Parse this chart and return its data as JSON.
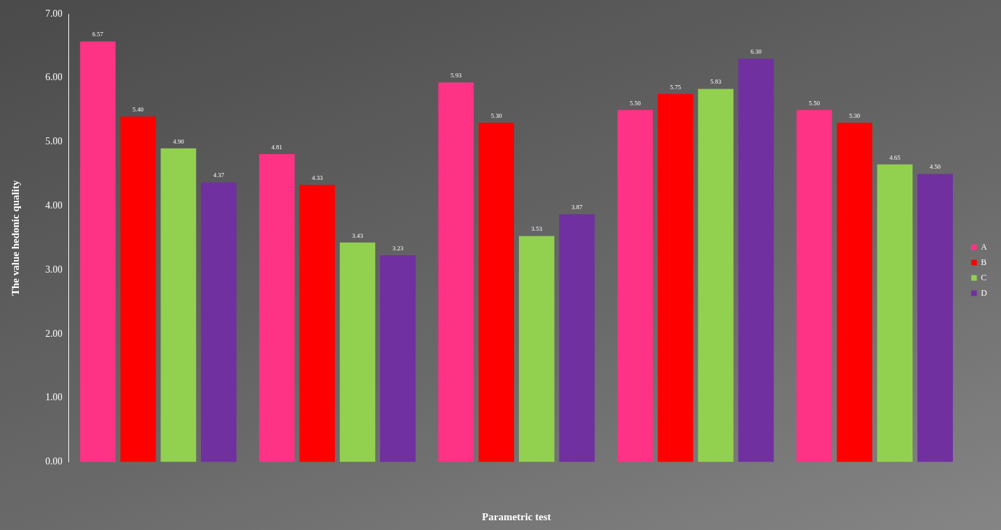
{
  "chart_data": {
    "type": "bar",
    "xlabel": "Parametric test",
    "ylabel": "The value hedonic quality",
    "categories": [
      null,
      null,
      null,
      null,
      null
    ],
    "series": [
      {
        "name": "A",
        "color": "#ff3385",
        "values": [
          6.57,
          4.81,
          5.93,
          5.5,
          5.5
        ],
        "value_labels": [
          "6.57",
          "4.81",
          "5.93",
          "5.50",
          "5.50"
        ]
      },
      {
        "name": "B",
        "color": "#ff0000",
        "values": [
          5.4,
          4.33,
          5.3,
          5.75,
          5.3
        ],
        "value_labels": [
          "5.40",
          "4.33",
          "5.30",
          "5.75",
          "5.30"
        ]
      },
      {
        "name": "C",
        "color": "#92d050",
        "values": [
          4.9,
          3.43,
          3.53,
          5.83,
          4.65
        ],
        "value_labels": [
          "4.90",
          "3.43",
          "3.53",
          "5.83",
          "4.65"
        ]
      },
      {
        "name": "D",
        "color": "#7030a0",
        "values": [
          4.37,
          3.23,
          3.87,
          6.3,
          4.5
        ],
        "value_labels": [
          "4.37",
          "3.23",
          "3.87",
          "6.30",
          "4.50"
        ]
      }
    ],
    "ylim": [
      0,
      7
    ],
    "yticks": [
      {
        "value": 0,
        "label": "0.00"
      },
      {
        "value": 1,
        "label": "1.00"
      },
      {
        "value": 2,
        "label": "2.00"
      },
      {
        "value": 3,
        "label": "3.00"
      },
      {
        "value": 4,
        "label": "4.00"
      },
      {
        "value": 5,
        "label": "5.00"
      },
      {
        "value": 6,
        "label": "6.00"
      },
      {
        "value": 7,
        "label": "7.00"
      }
    ],
    "grid": false,
    "legend": "right"
  }
}
